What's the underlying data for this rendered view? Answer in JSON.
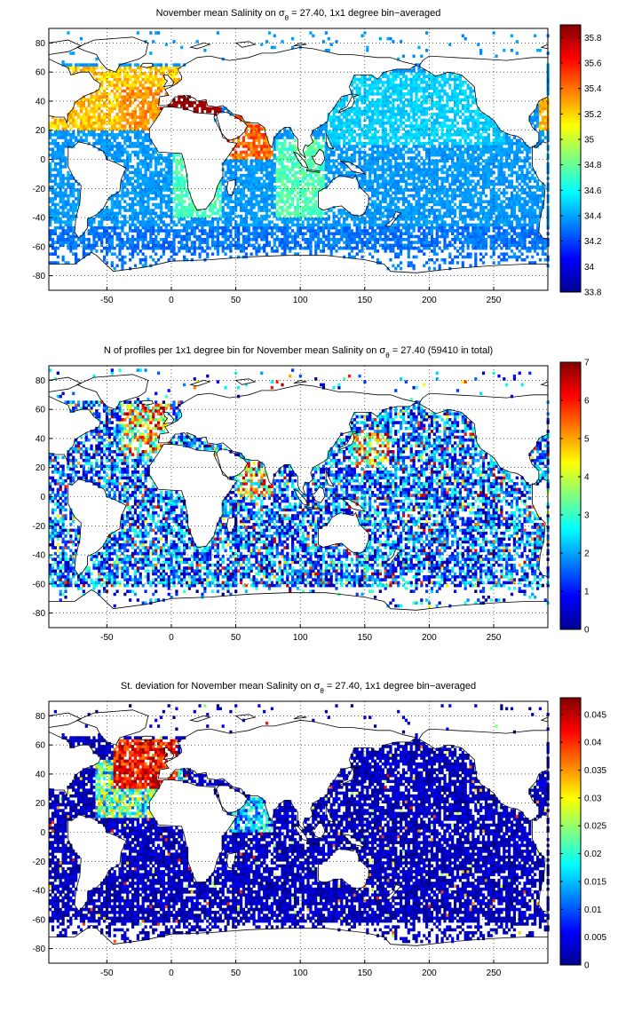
{
  "panels": [
    {
      "title_pre": "November mean Salinity on ",
      "title_post": " = 27.40, 1x1 degree bin−averaged",
      "colorbar": {
        "colormap": "jet",
        "range": [
          33.8,
          35.9
        ],
        "ticks": [
          "35.8",
          "35.6",
          "35.4",
          "35.2",
          "35",
          "34.8",
          "34.6",
          "34.4",
          "34.2",
          "34",
          "33.8"
        ],
        "tick_values": [
          35.8,
          35.6,
          35.4,
          35.2,
          35.0,
          34.8,
          34.6,
          34.4,
          34.2,
          34.0,
          33.8
        ]
      }
    },
    {
      "title_pre": "N of profiles per 1x1 degree bin for November mean Salinity on ",
      "title_post": " = 27.40 (59410 in total)",
      "colorbar": {
        "colormap": "jet",
        "range": [
          0,
          7
        ],
        "ticks": [
          "7",
          "6",
          "5",
          "4",
          "3",
          "2",
          "1",
          "0"
        ],
        "tick_values": [
          7,
          6,
          5,
          4,
          3,
          2,
          1,
          0
        ]
      }
    },
    {
      "title_pre": "St. deviation for November mean Salinity on ",
      "title_post": " = 27.40, 1x1 degree bin−averaged",
      "colorbar": {
        "colormap": "jet",
        "range": [
          0,
          0.048
        ],
        "ticks": [
          "0.045",
          "0.04",
          "0.035",
          "0.03",
          "0.025",
          "0.02",
          "0.015",
          "0.01",
          "0.005",
          "0"
        ],
        "tick_values": [
          0.045,
          0.04,
          0.035,
          0.03,
          0.025,
          0.02,
          0.015,
          0.01,
          0.005,
          0
        ]
      }
    }
  ],
  "map_axes": {
    "xlim": [
      -95,
      292
    ],
    "ylim": [
      -90,
      90
    ],
    "xticks": [
      "-50",
      "0",
      "50",
      "100",
      "150",
      "200",
      "250"
    ],
    "xtick_values": [
      -50,
      0,
      50,
      100,
      150,
      200,
      250
    ],
    "yticks": [
      "80",
      "60",
      "40",
      "20",
      "0",
      "-20",
      "-40",
      "-60",
      "-80"
    ],
    "ytick_values": [
      80,
      60,
      40,
      20,
      0,
      -20,
      -40,
      -60,
      -80
    ],
    "grid": "dotted"
  },
  "sigma_symbol": "σ",
  "sigma_sub": "θ"
}
